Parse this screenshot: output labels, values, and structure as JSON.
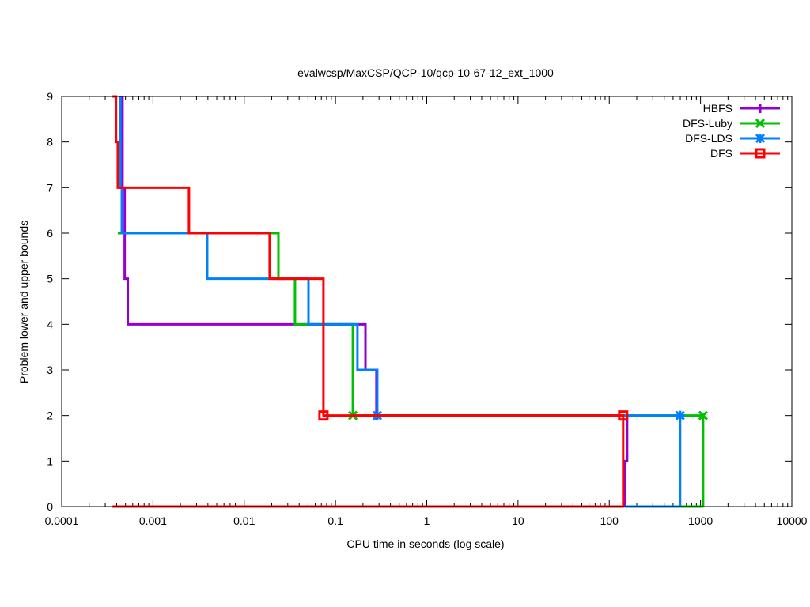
{
  "chart_data": {
    "type": "line",
    "title": "evalwcsp/MaxCSP/QCP-10/qcp-10-67-12_ext_1000",
    "xlabel": "CPU time in seconds (log scale)",
    "ylabel": "Problem lower and upper bounds",
    "x_scale": "log",
    "xlim": [
      0.0001,
      10000
    ],
    "ylim": [
      0,
      9
    ],
    "x_ticks": [
      "0.0001",
      "0.001",
      "0.01",
      "0.1",
      "1",
      "10",
      "100",
      "1000",
      "10000"
    ],
    "y_ticks": [
      "0",
      "1",
      "2",
      "3",
      "4",
      "5",
      "6",
      "7",
      "8",
      "9"
    ],
    "grid": false,
    "legend_position": "top-right",
    "series": [
      {
        "name": "HBFS",
        "color": "#9400d3",
        "marker": "plus",
        "upper": [
          [
            0.000464,
            9
          ],
          [
            0.000464,
            7
          ],
          [
            0.00049,
            7
          ],
          [
            0.00049,
            5
          ],
          [
            0.00053,
            5
          ],
          [
            0.00053,
            4
          ],
          [
            0.213,
            4
          ],
          [
            0.213,
            3
          ],
          [
            0.281,
            3
          ],
          [
            0.281,
            2
          ],
          [
            157,
            2
          ],
          [
            157,
            1
          ],
          [
            148,
            1
          ],
          [
            148,
            0
          ]
        ],
        "lower": [
          [
            148,
            0
          ],
          [
            148,
            0
          ]
        ],
        "markers": [
          [
            0.281,
            2
          ]
        ]
      },
      {
        "name": "DFS-Luby",
        "color": "#00c000",
        "marker": "cross",
        "upper": [
          [
            0.000412,
            6
          ],
          [
            0.0237,
            6
          ],
          [
            0.0237,
            5
          ],
          [
            0.036,
            5
          ],
          [
            0.036,
            4
          ],
          [
            0.155,
            4
          ],
          [
            0.155,
            2
          ],
          [
            1067,
            2
          ],
          [
            1067,
            0
          ]
        ],
        "lower": [
          [
            597,
            0
          ],
          [
            1067,
            0
          ]
        ],
        "markers": [
          [
            0.155,
            2
          ],
          [
            1067,
            2
          ]
        ]
      },
      {
        "name": "DFS-LDS",
        "color": "#0080ff",
        "marker": "star",
        "upper": [
          [
            0.00044,
            9
          ],
          [
            0.00044,
            7
          ],
          [
            0.000456,
            7
          ],
          [
            0.000456,
            6
          ],
          [
            0.00393,
            6
          ],
          [
            0.00393,
            5
          ],
          [
            0.0506,
            5
          ],
          [
            0.0506,
            4
          ],
          [
            0.174,
            4
          ],
          [
            0.174,
            3
          ],
          [
            0.287,
            3
          ],
          [
            0.287,
            2
          ],
          [
            597,
            2
          ],
          [
            597,
            0
          ]
        ],
        "lower": [
          [
            148,
            0
          ],
          [
            597,
            0
          ]
        ],
        "markers": [
          [
            0.287,
            2
          ],
          [
            597,
            2
          ]
        ]
      },
      {
        "name": "DFS",
        "color": "#ff0000",
        "marker": "square",
        "upper": [
          [
            0.00036,
            9
          ],
          [
            0.000394,
            9
          ],
          [
            0.000394,
            8
          ],
          [
            0.000412,
            8
          ],
          [
            0.000412,
            7
          ],
          [
            0.00248,
            7
          ],
          [
            0.00248,
            6
          ],
          [
            0.019,
            6
          ],
          [
            0.019,
            5
          ],
          [
            0.0738,
            5
          ],
          [
            0.0738,
            2
          ],
          [
            142,
            2
          ],
          [
            142,
            0
          ]
        ],
        "lower": [
          [
            0.00036,
            0
          ],
          [
            145,
            0
          ]
        ],
        "markers": [
          [
            0.0738,
            2
          ],
          [
            142,
            2
          ]
        ]
      }
    ]
  }
}
